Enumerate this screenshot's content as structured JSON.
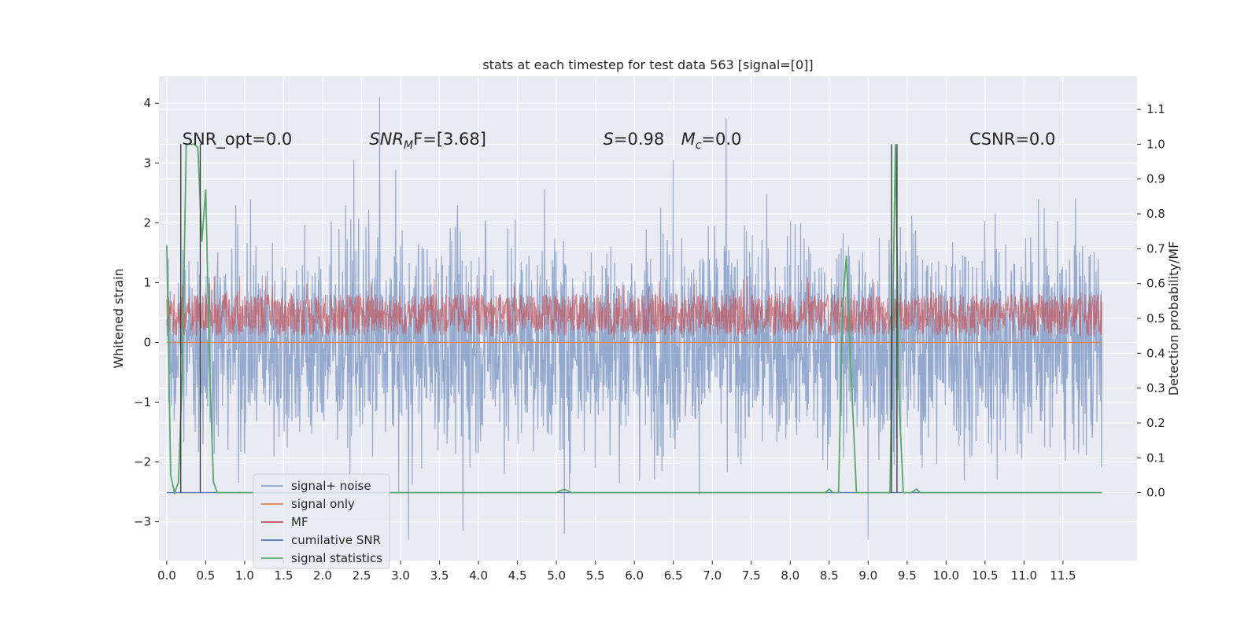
{
  "chart_data": {
    "type": "line",
    "title": "stats at each timestep for test data 563 [signal=[0]]",
    "xlabel": "",
    "ylabel": "Whitened strain",
    "ylabel_right": "Detection probability/MF",
    "xlim": [
      -0.1,
      12.45
    ],
    "ylim": [
      -3.65,
      4.45
    ],
    "ylim_right": [
      -0.195,
      1.195
    ],
    "x_ticks": [
      "0.0",
      "0.5",
      "1.0",
      "1.5",
      "2.0",
      "2.5",
      "3.0",
      "3.5",
      "4.0",
      "4.5",
      "5.0",
      "5.5",
      "6.0",
      "6.5",
      "7.0",
      "7.5",
      "8.0",
      "8.5",
      "9.0",
      "9.5",
      "10.0",
      "10.5",
      "11.0",
      "11.5"
    ],
    "y_ticks_left": [
      "−3",
      "−2",
      "−1",
      "0",
      "1",
      "2",
      "3",
      "4"
    ],
    "y_ticks_right": [
      "0.0",
      "0.1",
      "0.2",
      "0.3",
      "0.4",
      "0.5",
      "0.6",
      "0.7",
      "0.8",
      "0.9",
      "1.0",
      "1.1"
    ],
    "grid": true,
    "legend_position": "lower-left",
    "annotations": {
      "snr_opt": "SNR_opt=0.0",
      "snr_mf_base": "SNR",
      "snr_mf_sub": "M",
      "snr_mf_rest": "F=[3.68]",
      "s_label": "S",
      "s_value": "=0.98",
      "mc_label": "M",
      "mc_sub": "c",
      "mc_value": "=0.0",
      "csnr": "CSNR=0.0"
    },
    "series": [
      {
        "name": "signal+ noise",
        "color": "#4c72b0",
        "axis": "left",
        "style": "dense noise, approx. std 0.9, range -3.3 to 4.1",
        "peaks": [
          {
            "x": 2.73,
            "y": 4.1
          },
          {
            "x": 7.18,
            "y": 3.75
          },
          {
            "x": 6.5,
            "y": 3.05
          },
          {
            "x": 2.4,
            "y": 3.05
          },
          {
            "x": 5.1,
            "y": -3.2
          },
          {
            "x": 3.1,
            "y": -3.3
          },
          {
            "x": 9.0,
            "y": -3.3
          },
          {
            "x": 3.8,
            "y": -3.15
          }
        ]
      },
      {
        "name": "signal only",
        "color": "#dd8452",
        "axis": "left",
        "x": [
          0.0,
          12.0
        ],
        "y": [
          0.0,
          0.0
        ]
      },
      {
        "name": "MF",
        "color": "#c44e52",
        "axis": "right",
        "style": "dense noise, range approx. 0.44 to 0.62"
      },
      {
        "name": "cumilative SNR",
        "color": "#4c72b0",
        "axis": "right",
        "x": [
          0.0,
          12.0
        ],
        "y": [
          0.0,
          0.0
        ]
      },
      {
        "name": "signal statistics",
        "color": "#55a868",
        "axis": "right",
        "x": [
          0.0,
          0.05,
          0.1,
          0.15,
          0.2,
          0.25,
          0.3,
          0.35,
          0.4,
          0.45,
          0.5,
          0.55,
          0.6,
          0.65,
          0.7,
          0.75,
          0.8,
          5.0,
          5.1,
          5.2,
          8.45,
          8.5,
          8.55,
          8.62,
          8.67,
          8.72,
          8.78,
          8.85,
          9.28,
          9.35,
          9.4,
          9.45,
          9.5,
          9.55,
          9.62,
          9.67,
          9.72,
          10.5,
          12.0
        ],
        "y": [
          0.71,
          0.05,
          0.0,
          0.03,
          0.35,
          1.0,
          1.0,
          1.0,
          0.99,
          0.72,
          0.87,
          0.35,
          0.03,
          0.0,
          0.0,
          0.0,
          0.0,
          0.0,
          0.01,
          0.0,
          0.0,
          0.01,
          0.0,
          0.0,
          0.52,
          0.68,
          0.35,
          0.0,
          0.0,
          1.0,
          0.25,
          0.0,
          0.0,
          0.0,
          0.01,
          0.0,
          0.0,
          0.0,
          0.0
        ]
      }
    ],
    "vertical_lines": [
      {
        "x": 0.18,
        "color": "#333333"
      },
      {
        "x": 0.43,
        "color": "#333333"
      },
      {
        "x": 9.3,
        "color": "#333333"
      },
      {
        "x": 9.37,
        "color": "#333333"
      }
    ]
  }
}
